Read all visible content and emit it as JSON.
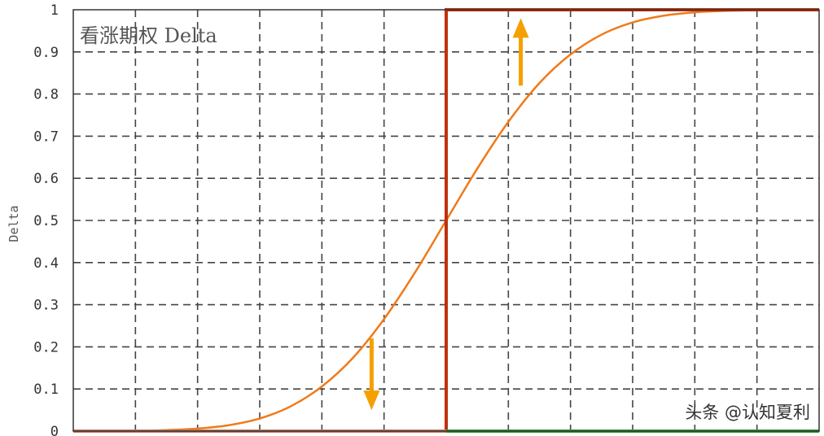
{
  "chart_data": {
    "type": "line",
    "title": "看涨期权 Delta",
    "xlabel": "",
    "ylabel": "Delta",
    "ylim": [
      0,
      1
    ],
    "yticks": [
      "0",
      "0.1",
      "0.2",
      "0.3",
      "0.4",
      "0.5",
      "0.6",
      "0.7",
      "0.8",
      "0.9",
      "1"
    ],
    "xlim": [
      0,
      12
    ],
    "grid": true,
    "series": [
      {
        "style": "smooth-curve",
        "color": "#f07a1a",
        "x": [
          0,
          0.5,
          1,
          1.5,
          2,
          2.5,
          3,
          3.5,
          4,
          4.5,
          5,
          5.5,
          6,
          6.5,
          7,
          7.5,
          8,
          8.5,
          9,
          9.5,
          10,
          10.5,
          11,
          11.5,
          12
        ],
        "y": [
          0,
          0.0003,
          0.001,
          0.0025,
          0.006,
          0.014,
          0.03,
          0.059,
          0.106,
          0.174,
          0.266,
          0.377,
          0.5,
          0.623,
          0.734,
          0.826,
          0.894,
          0.941,
          0.97,
          0.986,
          0.994,
          0.9975,
          0.999,
          0.9997,
          1
        ]
      },
      {
        "style": "step",
        "color": "#c0300c",
        "x": [
          6,
          6,
          12
        ],
        "y": [
          0,
          1,
          1
        ]
      },
      {
        "style": "flat-left",
        "color": "#c8785a",
        "x": [
          0,
          6
        ],
        "y": [
          0,
          0
        ]
      },
      {
        "style": "flat-right",
        "color": "#2e9a2e",
        "x": [
          6,
          12
        ],
        "y": [
          0,
          0
        ]
      }
    ],
    "annotations": [
      {
        "type": "arrow",
        "direction": "up",
        "color": "#f5a000",
        "x": 7.2,
        "y_from": 0.82,
        "y_to": 0.98
      },
      {
        "type": "arrow",
        "direction": "down",
        "color": "#f5a000",
        "x": 4.8,
        "y_from": 0.22,
        "y_to": 0.05
      }
    ]
  },
  "watermark": "头条 @认知夏利"
}
